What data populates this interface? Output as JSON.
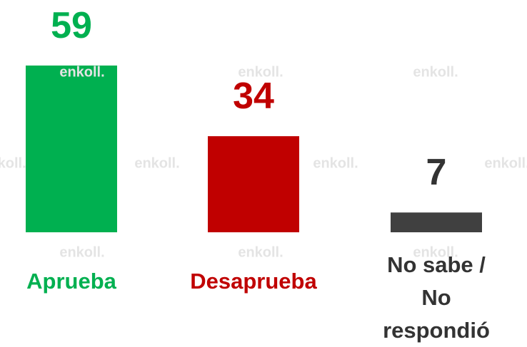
{
  "chart_data": {
    "type": "bar",
    "categories": [
      "Aprueba",
      "Desaprueba",
      "No sabe /\nNo respondió"
    ],
    "values": [
      59,
      34,
      7
    ],
    "colors": [
      "#00b050",
      "#c00000",
      "#404040"
    ],
    "label_colors": [
      "#00b050",
      "#c00000",
      "#333333"
    ],
    "ylim": [
      0,
      60
    ],
    "watermark": "enkoll."
  }
}
